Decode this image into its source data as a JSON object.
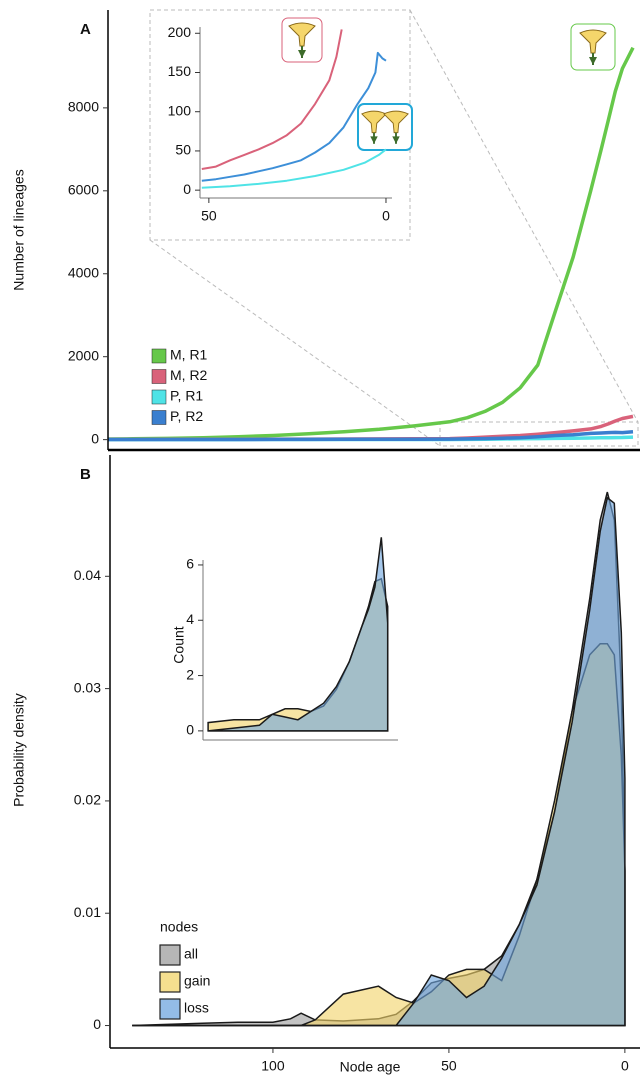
{
  "chart_data": [
    {
      "type": "line",
      "panel": "A",
      "ylabel": "Number of lineages",
      "xlim": [
        147,
        -4
      ],
      "ylim": [
        -250,
        10360
      ],
      "yticks": [
        0,
        2000,
        4000,
        6000,
        8000
      ],
      "legend": "bottom-left",
      "x": [
        147,
        140,
        130,
        120,
        110,
        100,
        90,
        80,
        70,
        60,
        50,
        45,
        40,
        35,
        30,
        25,
        20,
        15,
        10,
        7,
        5,
        3,
        1,
        -2
      ],
      "series": [
        {
          "name": "M, R1",
          "color": "#66c84a",
          "values": [
            15,
            20,
            30,
            45,
            70,
            100,
            140,
            190,
            250,
            330,
            430,
            530,
            680,
            900,
            1250,
            1800,
            3100,
            4400,
            6000,
            7000,
            7700,
            8400,
            8950,
            9450
          ]
        },
        {
          "name": "M, R2",
          "color": "#d9627a",
          "values": [
            5,
            6,
            7,
            8,
            10,
            12,
            14,
            16,
            18,
            20,
            25,
            40,
            60,
            80,
            100,
            130,
            170,
            210,
            260,
            320,
            380,
            450,
            510,
            560
          ]
        },
        {
          "name": "P, R1",
          "color": "#4fe3e6",
          "values": [
            1,
            1,
            1,
            1,
            1,
            2,
            2,
            2,
            2,
            3,
            3,
            6,
            10,
            15,
            20,
            25,
            30,
            35,
            40,
            43,
            47,
            50,
            52,
            60
          ]
        },
        {
          "name": "P, R2",
          "color": "#3a7fcf",
          "values": [
            2,
            2,
            3,
            3,
            4,
            5,
            6,
            7,
            8,
            10,
            12,
            18,
            25,
            35,
            45,
            70,
            100,
            120,
            150,
            160,
            170,
            175,
            170,
            190
          ]
        }
      ]
    },
    {
      "type": "line",
      "xlim": [
        52.5,
        -1.7
      ],
      "ylim": [
        -10,
        208
      ],
      "xticks": [
        50,
        0
      ],
      "yticks": [
        0,
        50,
        100,
        150,
        200
      ],
      "series": [
        {
          "color": "#d9627a",
          "x": [
            52,
            48,
            44,
            40,
            36,
            32,
            28,
            24,
            20,
            16,
            14,
            12.5
          ],
          "values": [
            27,
            30,
            38,
            45,
            52,
            60,
            70,
            85,
            110,
            140,
            170,
            205
          ]
        },
        {
          "color": "#3d8fd8",
          "x": [
            52,
            48,
            44,
            40,
            36,
            32,
            28,
            24,
            20,
            16,
            12,
            8,
            5,
            3,
            2.3,
            1,
            0
          ],
          "values": [
            12,
            14,
            17,
            20,
            24,
            28,
            33,
            38,
            48,
            60,
            80,
            110,
            130,
            150,
            175,
            168,
            165
          ]
        },
        {
          "color": "#4fe3e6",
          "x": [
            52,
            44,
            36,
            28,
            20,
            12,
            6,
            2,
            0
          ],
          "values": [
            3,
            5,
            8,
            12,
            18,
            26,
            35,
            45,
            52
          ]
        }
      ]
    },
    {
      "type": "area",
      "panel": "B",
      "ylabel": "Probability density",
      "xlabel": "Node age",
      "xlim": [
        146.3,
        -4.3
      ],
      "ylim": [
        -0.002,
        0.0508
      ],
      "xticks": [
        100,
        50,
        0
      ],
      "yticks": [
        0,
        0.01,
        0.02,
        0.03,
        0.04
      ],
      "legend": "bottom-left",
      "legend_title": "nodes",
      "x": [
        140,
        130,
        120,
        110,
        100,
        95,
        92,
        88,
        80,
        70,
        65,
        60,
        55,
        50,
        45,
        40,
        35,
        30,
        25,
        20,
        15,
        10,
        7,
        5,
        3,
        1,
        0
      ],
      "series": [
        {
          "name": "all",
          "color": "#9e9e9e",
          "values": [
            0,
            0.0001,
            0.0002,
            0.0003,
            0.0003,
            0.0006,
            0.0011,
            0.0005,
            0.0004,
            0.0006,
            0.001,
            0.0022,
            0.0038,
            0.0042,
            0.0045,
            0.005,
            0.0062,
            0.009,
            0.013,
            0.019,
            0.028,
            0.038,
            0.045,
            0.0475,
            0.045,
            0.03,
            0.0138
          ]
        },
        {
          "name": "gain",
          "color": "#f2d46a",
          "values": [
            0,
            0,
            0,
            0,
            0,
            0,
            0,
            0.0005,
            0.0028,
            0.0035,
            0.0025,
            0.002,
            0.003,
            0.0045,
            0.005,
            0.005,
            0.004,
            0.008,
            0.013,
            0.02,
            0.028,
            0.033,
            0.034,
            0.034,
            0.033,
            0.024,
            0.0138
          ]
        },
        {
          "name": "loss",
          "color": "#6fa6df",
          "values": [
            0,
            0,
            0,
            0,
            0,
            0,
            0,
            0,
            0,
            0,
            0,
            0.002,
            0.0045,
            0.004,
            0.0025,
            0.0035,
            0.006,
            0.009,
            0.0125,
            0.019,
            0.027,
            0.037,
            0.044,
            0.047,
            0.0465,
            0.035,
            0.022
          ]
        }
      ]
    },
    {
      "type": "area",
      "ylabel": "Count",
      "xlim": [
        144,
        -8
      ],
      "ylim": [
        -0.33,
        7.3
      ],
      "yticks": [
        0,
        2,
        4,
        6
      ],
      "x": [
        140,
        120,
        100,
        90,
        80,
        70,
        60,
        50,
        40,
        30,
        20,
        15,
        10,
        5,
        0
      ],
      "series": [
        {
          "color": "#f2d46a",
          "values": [
            0.3,
            0.4,
            0.4,
            0.6,
            0.8,
            0.8,
            0.7,
            0.9,
            1.5,
            2.5,
            3.8,
            4.5,
            5.4,
            5.5,
            4.5
          ]
        },
        {
          "color": "#6fa6df",
          "values": [
            0,
            0.1,
            0.2,
            0.6,
            0.5,
            0.4,
            0.7,
            1.0,
            1.6,
            2.5,
            3.8,
            4.4,
            5.2,
            7.0,
            3.9
          ]
        }
      ]
    }
  ]
}
